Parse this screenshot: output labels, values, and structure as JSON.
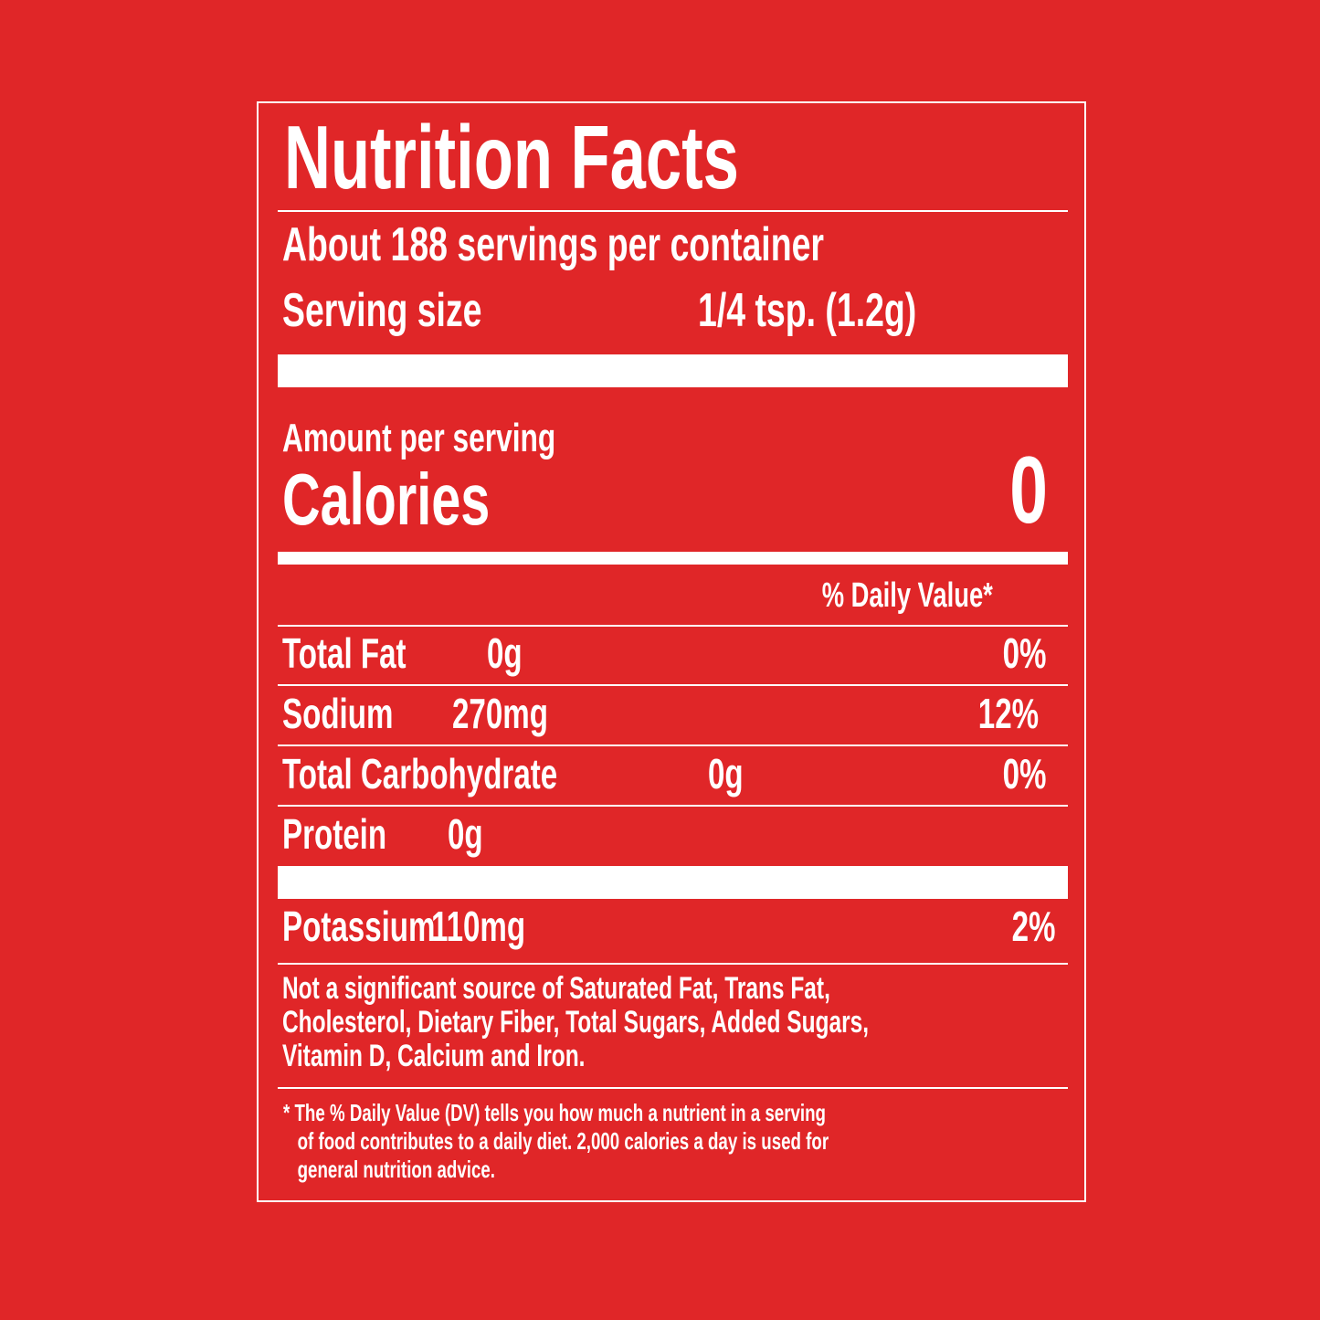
{
  "title": "Nutrition Facts",
  "servings_per_container": "About 188 servings per container",
  "serving_size": {
    "label": "Serving size",
    "value": "1/4 tsp. (1.2g)"
  },
  "amount_per_serving": "Amount per serving",
  "calories": {
    "label": "Calories",
    "value": "0"
  },
  "daily_value_header": "% Daily Value*",
  "nutrients": [
    {
      "name": "Total Fat",
      "amount": "0g",
      "dv": "0%"
    },
    {
      "name": "Sodium",
      "amount": "270mg",
      "dv": "12%"
    },
    {
      "name": "Total Carbohydrate",
      "amount": "0g",
      "dv": "0%"
    },
    {
      "name": "Protein",
      "amount": "0g",
      "dv": ""
    },
    {
      "name": "Potassium",
      "amount": "110mg",
      "dv": "2%"
    }
  ],
  "not_significant": "Not a significant source of Saturated Fat, Trans Fat,\nCholesterol, Dietary Fiber, Total Sugars, Added Sugars,\nVitamin D, Calcium and Iron.",
  "footnote": "* The % Daily Value (DV) tells you how much a nutrient in a serving\n   of food contributes to a daily diet. 2,000 calories a day is used for\n   general nutrition advice.",
  "colors": {
    "background": "#E02628",
    "text": "#FFFFFF"
  }
}
